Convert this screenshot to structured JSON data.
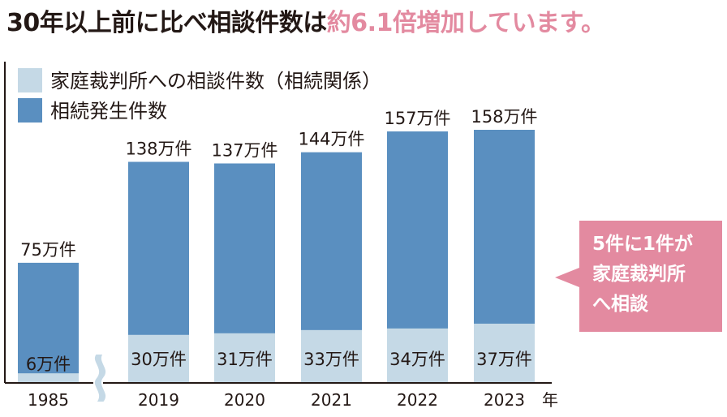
{
  "headline": {
    "main": "30年以上前に比べ相談件数は",
    "accent": "約6.1倍増加しています。",
    "accent_color": "#e38aa0"
  },
  "legend": [
    {
      "label": "家庭裁判所への相談件数（相続関係）",
      "color": "#c5d9e6"
    },
    {
      "label": "相続発生件数",
      "color": "#5a8fc0"
    }
  ],
  "callout": {
    "lines": [
      "5件に1件が",
      "家庭裁判所",
      "へ相談"
    ],
    "color": "#e38aa0"
  },
  "chart_data": {
    "type": "bar",
    "categories": [
      "1985",
      "2019",
      "2020",
      "2021",
      "2022",
      "2023"
    ],
    "x_unit": "年",
    "series": [
      {
        "name": "家庭裁判所への相談件数（相続関係）",
        "values": [
          6,
          30,
          31,
          33,
          34,
          37
        ],
        "labels": [
          "6万件",
          "30万件",
          "31万件",
          "33万件",
          "34万件",
          "37万件"
        ],
        "color": "#c5d9e6"
      },
      {
        "name": "相続発生件数",
        "values": [
          75,
          138,
          137,
          144,
          157,
          158
        ],
        "labels": [
          "75万件",
          "138万件",
          "137万件",
          "144万件",
          "157万件",
          "158万件"
        ],
        "color": "#5a8fc0"
      }
    ],
    "axis_break_after": "1985",
    "ylim": [
      0,
      158
    ]
  }
}
